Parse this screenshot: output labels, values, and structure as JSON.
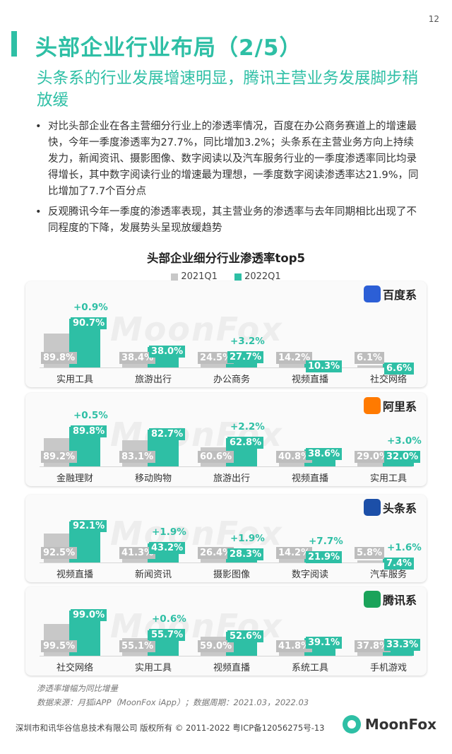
{
  "page_number": "12",
  "title": "头部企业行业布局（2/5）",
  "subtitle": "头条系的行业发展增速明显，腾讯主营业务发展脚步稍放缓",
  "bullets": [
    "对比头部企业在各主营细分行业上的渗透率情况，百度在办公商务赛道上的增速最快，今年一季度渗透率为27.7%，同比增加3.2%；头条系在主营业务方向上持续发力，新闻资讯、摄影图像、数字阅读以及汽车服务行业的一季度渗透率同比均录得增长，其中数字阅读行业的增速最为理想，一季度数字阅读渗透率达21.9%，同比增加了7.7个百分点",
    "反观腾讯今年一季度的渗透率表现，其主营业务的渗透率与去年同期相比出现了不同程度的下降，发展势头呈现放缓趋势"
  ],
  "chart_title": "头部企业细分行业渗透率top5",
  "legend": {
    "a": "2021Q1",
    "b": "2022Q1"
  },
  "colors": {
    "accent": "#2ebfa5",
    "gray": "#c8c8c8"
  },
  "watermark": "MoonFox",
  "chart_data": [
    {
      "type": "bar",
      "brand": "百度系",
      "categories": [
        "实用工具",
        "旅游出行",
        "办公商务",
        "视频直播",
        "社交网络"
      ],
      "series": [
        {
          "name": "2021Q1",
          "values": [
            89.8,
            38.4,
            24.5,
            14.2,
            6.1
          ],
          "labels": [
            "89.8%",
            "38.4%",
            "24.5%",
            "14.2%",
            "6.1%"
          ]
        },
        {
          "name": "2022Q1",
          "values": [
            90.7,
            38.0,
            27.7,
            10.3,
            6.6
          ],
          "labels": [
            "90.7%",
            "38.0%",
            "27.7%",
            "10.3%",
            "6.6%"
          ]
        }
      ],
      "deltas": [
        "+0.9%",
        "",
        "+3.2%",
        "",
        ""
      ]
    },
    {
      "type": "bar",
      "brand": "阿里系",
      "categories": [
        "金融理财",
        "移动购物",
        "旅游出行",
        "视频直播",
        "实用工具"
      ],
      "series": [
        {
          "name": "2021Q1",
          "values": [
            89.2,
            83.1,
            60.6,
            40.8,
            29.0
          ],
          "labels": [
            "89.2%",
            "83.1%",
            "60.6%",
            "40.8%",
            "29.0%"
          ]
        },
        {
          "name": "2022Q1",
          "values": [
            89.8,
            82.7,
            62.8,
            38.6,
            32.0
          ],
          "labels": [
            "89.8%",
            "82.7%",
            "62.8%",
            "38.6%",
            "32.0%"
          ]
        }
      ],
      "deltas": [
        "+0.5%",
        "",
        "+2.2%",
        "",
        "+3.0%"
      ]
    },
    {
      "type": "bar",
      "brand": "头条系",
      "categories": [
        "视频直播",
        "新闻资讯",
        "摄影图像",
        "数字阅读",
        "汽车服务"
      ],
      "series": [
        {
          "name": "2021Q1",
          "values": [
            92.5,
            41.3,
            26.4,
            14.2,
            5.8
          ],
          "labels": [
            "92.5%",
            "41.3%",
            "26.4%",
            "14.2%",
            "5.8%"
          ]
        },
        {
          "name": "2022Q1",
          "values": [
            92.1,
            43.2,
            28.3,
            21.9,
            7.4
          ],
          "labels": [
            "92.1%",
            "43.2%",
            "28.3%",
            "21.9%",
            "7.4%"
          ]
        }
      ],
      "deltas": [
        "",
        "+1.9%",
        "+1.9%",
        "+7.7%",
        "+1.6%"
      ]
    },
    {
      "type": "bar",
      "brand": "腾讯系",
      "categories": [
        "社交网络",
        "实用工具",
        "视频直播",
        "系统工具",
        "手机游戏"
      ],
      "series": [
        {
          "name": "2021Q1",
          "values": [
            99.5,
            55.1,
            59.0,
            41.8,
            37.8
          ],
          "labels": [
            "99.5%",
            "55.1%",
            "59.0%",
            "41.8%",
            "37.8%"
          ]
        },
        {
          "name": "2022Q1",
          "values": [
            99.0,
            55.7,
            52.6,
            39.1,
            33.3
          ],
          "labels": [
            "99.0%",
            "55.7%",
            "52.6%",
            "39.1%",
            "33.3%"
          ]
        }
      ],
      "deltas": [
        "",
        "+0.6%",
        "",
        "",
        ""
      ]
    }
  ],
  "notes": {
    "n1": "渗透率增幅为同比增量",
    "n2": "数据来源：月狐iAPP（MoonFox iApp）；数据周期：2021.03，2022.03"
  },
  "footer": "深圳市和讯华谷信息技术有限公司 版权所有 © 2011-2022 粤ICP备12056275号-13",
  "logo_text": "MoonFox"
}
